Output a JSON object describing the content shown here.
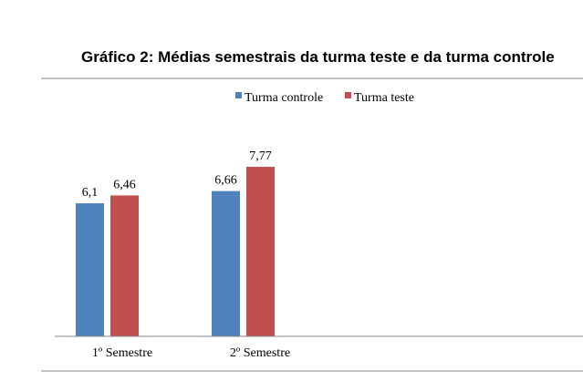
{
  "chart_data": {
    "type": "bar",
    "title": "Gráfico 2: Médias semestrais da turma teste e da turma controle",
    "categories": [
      "1º Semestre",
      "2º Semestre"
    ],
    "series": [
      {
        "name": "Turma controle",
        "values": [
          6.1,
          6.66
        ],
        "labels": [
          "6,1",
          "6,66"
        ],
        "color": "#4f81bd"
      },
      {
        "name": "Turma teste",
        "values": [
          6.46,
          7.77
        ],
        "labels": [
          "6,46",
          "7,77"
        ],
        "color": "#c0504d"
      }
    ],
    "xlabel": "",
    "ylabel": "",
    "ylim": [
      0,
      9
    ],
    "grid": false,
    "legend": "top"
  }
}
